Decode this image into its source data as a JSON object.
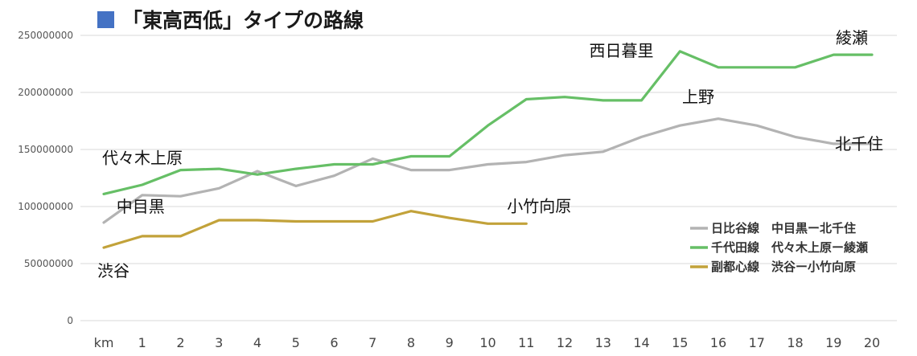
{
  "title": "「東高西低」タイプの路線",
  "chart_data": {
    "type": "line",
    "title": "「東高西低」タイプの路線",
    "x_prefix_label": "km",
    "x": [
      0,
      1,
      2,
      3,
      4,
      5,
      6,
      7,
      8,
      9,
      10,
      11,
      12,
      13,
      14,
      15,
      16,
      17,
      18,
      19,
      20
    ],
    "x_tick_labels": [
      "km",
      "1",
      "2",
      "3",
      "4",
      "5",
      "6",
      "7",
      "8",
      "9",
      "10",
      "11",
      "12",
      "13",
      "14",
      "15",
      "16",
      "17",
      "18",
      "19",
      "20"
    ],
    "ylim": [
      0,
      250000000
    ],
    "yticks": [
      0,
      50000000,
      100000000,
      150000000,
      200000000,
      250000000
    ],
    "ytick_labels": [
      "0",
      "50000000",
      "100000000",
      "150000000",
      "200000000",
      "250000000"
    ],
    "grid": true,
    "legend_position": "right",
    "series": [
      {
        "name": "日比谷線　中目黒ー北千住",
        "color": "#b3b3b3",
        "x": [
          0,
          1,
          2,
          3,
          4,
          5,
          6,
          7,
          8,
          9,
          10,
          11,
          12,
          13,
          14,
          15,
          16,
          17,
          18,
          19,
          20
        ],
        "values": [
          86000000,
          110000000,
          109000000,
          116000000,
          131000000,
          118000000,
          127000000,
          142000000,
          132000000,
          132000000,
          137000000,
          139000000,
          145000000,
          148000000,
          161000000,
          171000000,
          177000000,
          171000000,
          161000000,
          155000000,
          155000000
        ]
      },
      {
        "name": "千代田線　代々木上原ー綾瀬",
        "color": "#66bf66",
        "x": [
          0,
          1,
          2,
          3,
          4,
          5,
          6,
          7,
          8,
          9,
          10,
          11,
          12,
          13,
          14,
          15,
          16,
          17,
          18,
          19,
          20
        ],
        "values": [
          111000000,
          119000000,
          132000000,
          133000000,
          128000000,
          133000000,
          137000000,
          137000000,
          144000000,
          144000000,
          171000000,
          194000000,
          196000000,
          193000000,
          193000000,
          236000000,
          222000000,
          222000000,
          222000000,
          233000000,
          233000000
        ]
      },
      {
        "name": "副都心線　渋谷ー小竹向原",
        "color": "#c2a23a",
        "x": [
          0,
          1,
          2,
          3,
          4,
          5,
          6,
          7,
          8,
          9,
          10,
          11
        ],
        "values": [
          64000000,
          74000000,
          74000000,
          88000000,
          88000000,
          87000000,
          87000000,
          87000000,
          96000000,
          90000000,
          85000000,
          85000000
        ]
      }
    ],
    "annotations": [
      {
        "text": "代々木上原",
        "x": 0,
        "y": 111000000
      },
      {
        "text": "渋谷",
        "x": 0,
        "y": 64000000
      },
      {
        "text": "中目黒",
        "x": 1,
        "y": 86000000
      },
      {
        "text": "小竹向原",
        "x": 11,
        "y": 85000000
      },
      {
        "text": "西日暮里",
        "x": 14,
        "y": 193000000
      },
      {
        "text": "上野",
        "x": 16,
        "y": 177000000
      },
      {
        "text": "綾瀬",
        "x": 20,
        "y": 233000000
      },
      {
        "text": "北千住",
        "x": 20,
        "y": 155000000
      }
    ]
  }
}
